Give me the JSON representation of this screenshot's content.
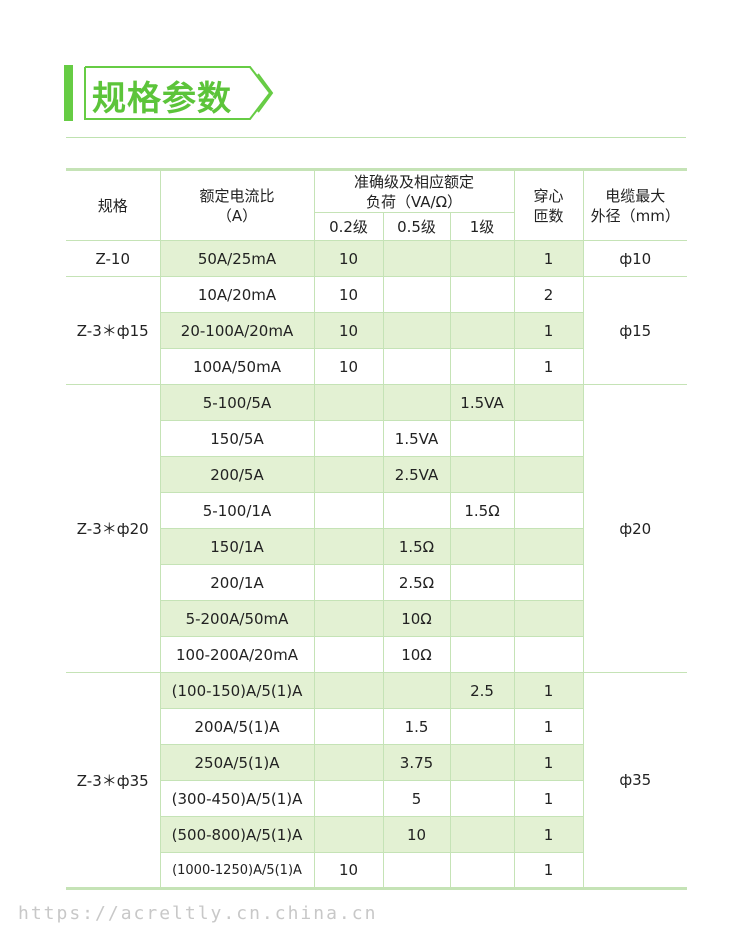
{
  "title": "规格参数",
  "colors": {
    "accent": "#66cc44",
    "shade": "#e3f1d3",
    "border": "#c5e3b6"
  },
  "header": {
    "spec": "规格",
    "ratio_line1": "额定电流比",
    "ratio_line2": "（A）",
    "accuracy_line1": "准确级及相应额定",
    "accuracy_line2": "负荷（VA/Ω）",
    "class02": "0.2级",
    "class05": "0.5级",
    "class1": "1级",
    "turns_line1": "穿心",
    "turns_line2": "匝数",
    "cable_line1": "电缆最大",
    "cable_line2": "外径（mm）"
  },
  "groups": [
    {
      "spec": "Z-10",
      "cable": "ф10",
      "rows": [
        {
          "ratio": "50A/25mA",
          "c02": "10",
          "c05": "",
          "c1": "",
          "turns": "1",
          "shade": true
        }
      ]
    },
    {
      "spec": "Z-3＊ф15",
      "cable": "ф15",
      "rows": [
        {
          "ratio": "10A/20mA",
          "c02": "10",
          "c05": "",
          "c1": "",
          "turns": "2",
          "shade": false
        },
        {
          "ratio": "20-100A/20mA",
          "c02": "10",
          "c05": "",
          "c1": "",
          "turns": "1",
          "shade": true
        },
        {
          "ratio": "100A/50mA",
          "c02": "10",
          "c05": "",
          "c1": "",
          "turns": "1",
          "shade": false
        }
      ]
    },
    {
      "spec": "Z-3＊ф20",
      "cable": "ф20",
      "rows": [
        {
          "ratio": "5-100/5A",
          "c02": "",
          "c05": "",
          "c1": "1.5VA",
          "turns": "",
          "shade": true
        },
        {
          "ratio": "150/5A",
          "c02": "",
          "c05": "1.5VA",
          "c1": "",
          "turns": "",
          "shade": false
        },
        {
          "ratio": "200/5A",
          "c02": "",
          "c05": "2.5VA",
          "c1": "",
          "turns": "",
          "shade": true
        },
        {
          "ratio": "5-100/1A",
          "c02": "",
          "c05": "",
          "c1": "1.5Ω",
          "turns": "",
          "shade": false
        },
        {
          "ratio": "150/1A",
          "c02": "",
          "c05": "1.5Ω",
          "c1": "",
          "turns": "",
          "shade": true
        },
        {
          "ratio": "200/1A",
          "c02": "",
          "c05": "2.5Ω",
          "c1": "",
          "turns": "",
          "shade": false
        },
        {
          "ratio": "5-200A/50mA",
          "c02": "",
          "c05": "10Ω",
          "c1": "",
          "turns": "",
          "shade": true
        },
        {
          "ratio": "100-200A/20mA",
          "c02": "",
          "c05": "10Ω",
          "c1": "",
          "turns": "",
          "shade": false
        }
      ]
    },
    {
      "spec": "Z-3＊ф35",
      "cable": "ф35",
      "rows": [
        {
          "ratio": "(100-150)A/5(1)A",
          "c02": "",
          "c05": "",
          "c1": "2.5",
          "turns": "1",
          "shade": true
        },
        {
          "ratio": "200A/5(1)A",
          "c02": "",
          "c05": "1.5",
          "c1": "",
          "turns": "1",
          "shade": false
        },
        {
          "ratio": "250A/5(1)A",
          "c02": "",
          "c05": "3.75",
          "c1": "",
          "turns": "1",
          "shade": true
        },
        {
          "ratio": "(300-450)A/5(1)A",
          "c02": "",
          "c05": "5",
          "c1": "",
          "turns": "1",
          "shade": false
        },
        {
          "ratio": "(500-800)A/5(1)A",
          "c02": "",
          "c05": "10",
          "c1": "",
          "turns": "1",
          "shade": true
        },
        {
          "ratio": "(1000-1250)A/5(1)A",
          "c02": "10",
          "c05": "",
          "c1": "",
          "turns": "1",
          "shade": false,
          "small": true
        }
      ]
    }
  ],
  "watermark": "https://acreltly.cn.china.cn"
}
